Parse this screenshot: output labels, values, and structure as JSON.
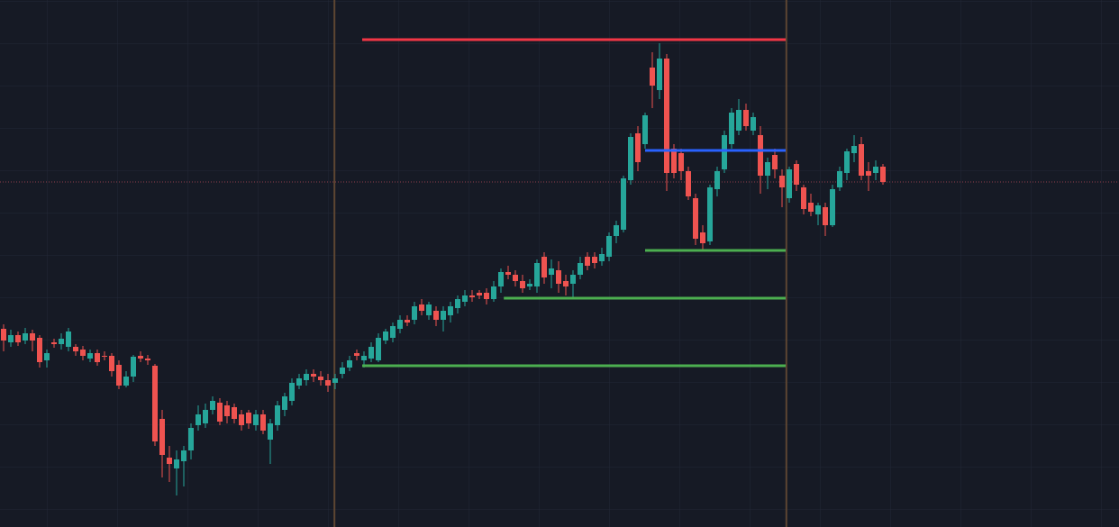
{
  "chart_data": {
    "type": "candlestick",
    "ylim": [
      15,
      600
    ],
    "up_color": "#26a69a",
    "down_color": "#ef5350",
    "open": [
      235,
      220,
      228,
      222,
      230,
      225,
      200,
      220,
      218,
      215,
      215,
      212,
      202,
      208,
      205,
      205,
      195,
      172,
      182,
      205,
      202,
      194,
      135,
      92,
      80,
      88,
      100,
      128,
      130,
      145,
      153,
      150,
      148,
      140,
      142,
      128,
      140,
      112,
      128,
      145,
      155,
      172,
      178,
      185,
      182,
      178,
      175,
      185,
      192,
      208,
      200,
      202,
      200,
      222,
      225,
      235,
      245,
      245,
      262,
      250,
      255,
      245,
      250,
      258,
      265,
      272,
      275,
      275,
      268,
      282,
      298,
      295,
      288,
      282,
      282,
      315,
      295,
      300,
      288,
      285,
      295,
      315,
      315,
      310,
      315,
      338,
      345,
      400,
      452,
      440,
      525,
      500,
      535,
      435,
      430,
      410,
      380,
      342,
      332,
      390,
      412,
      440,
      455,
      478,
      455,
      450,
      405,
      428,
      405,
      380,
      418,
      392,
      375,
      362,
      370,
      350,
      392,
      408,
      430,
      440,
      410,
      408,
      415
    ],
    "high": [
      240,
      234,
      232,
      236,
      234,
      228,
      212,
      224,
      230,
      236,
      218,
      216,
      212,
      212,
      210,
      208,
      200,
      188,
      206,
      210,
      206,
      196,
      145,
      105,
      100,
      105,
      130,
      150,
      152,
      160,
      158,
      155,
      152,
      145,
      145,
      145,
      145,
      135,
      155,
      164,
      180,
      185,
      190,
      190,
      188,
      185,
      185,
      198,
      205,
      212,
      210,
      220,
      230,
      235,
      242,
      250,
      250,
      265,
      268,
      265,
      260,
      260,
      265,
      272,
      278,
      278,
      278,
      280,
      288,
      302,
      305,
      300,
      295,
      290,
      312,
      320,
      312,
      310,
      295,
      300,
      315,
      320,
      320,
      325,
      342,
      355,
      405,
      452,
      460,
      475,
      542,
      552,
      540,
      440,
      435,
      415,
      385,
      350,
      395,
      415,
      455,
      480,
      490,
      485,
      475,
      460,
      425,
      435,
      412,
      415,
      422,
      395,
      385,
      375,
      375,
      395,
      415,
      435,
      450,
      448,
      420,
      422,
      418
    ],
    "low": [
      210,
      215,
      216,
      218,
      210,
      192,
      192,
      214,
      212,
      210,
      205,
      200,
      198,
      194,
      200,
      182,
      168,
      170,
      176,
      198,
      195,
      105,
      70,
      65,
      50,
      60,
      90,
      122,
      125,
      140,
      128,
      130,
      130,
      122,
      124,
      122,
      118,
      85,
      122,
      138,
      150,
      168,
      172,
      176,
      172,
      165,
      168,
      180,
      188,
      200,
      192,
      198,
      198,
      218,
      220,
      230,
      238,
      240,
      250,
      245,
      238,
      232,
      242,
      252,
      260,
      265,
      268,
      262,
      265,
      275,
      290,
      282,
      275,
      278,
      275,
      285,
      280,
      275,
      272,
      270,
      290,
      300,
      302,
      305,
      310,
      330,
      342,
      395,
      410,
      435,
      480,
      490,
      388,
      402,
      400,
      378,
      328,
      322,
      328,
      382,
      408,
      435,
      450,
      455,
      450,
      385,
      390,
      402,
      370,
      375,
      388,
      362,
      360,
      350,
      338,
      348,
      388,
      400,
      420,
      400,
      388,
      400,
      395
    ],
    "close": [
      222,
      228,
      220,
      230,
      222,
      198,
      208,
      218,
      224,
      232,
      210,
      205,
      208,
      198,
      204,
      188,
      172,
      182,
      204,
      202,
      200,
      110,
      95,
      85,
      90,
      100,
      125,
      140,
      145,
      155,
      132,
      138,
      135,
      128,
      130,
      140,
      122,
      130,
      150,
      160,
      175,
      180,
      185,
      182,
      178,
      172,
      180,
      192,
      200,
      205,
      205,
      215,
      225,
      232,
      238,
      245,
      242,
      260,
      255,
      262,
      245,
      255,
      260,
      268,
      272,
      270,
      272,
      268,
      282,
      298,
      295,
      288,
      280,
      285,
      308,
      292,
      302,
      285,
      282,
      295,
      308,
      305,
      308,
      318,
      338,
      350,
      402,
      448,
      420,
      472,
      505,
      535,
      408,
      408,
      410,
      382,
      335,
      330,
      392,
      410,
      450,
      475,
      478,
      460,
      470,
      405,
      420,
      412,
      392,
      412,
      395,
      368,
      365,
      372,
      350,
      390,
      410,
      432,
      438,
      405,
      405,
      415,
      398
    ],
    "levels": [
      {
        "value": 556,
        "from": 49.75,
        "to": 108.5,
        "color": "#f23645"
      },
      {
        "value": 433,
        "from": 89,
        "to": 108.5,
        "color": "#2962ff"
      },
      {
        "value": 322,
        "from": 89,
        "to": 108.5,
        "color": "#4caf50"
      },
      {
        "value": 269,
        "from": 69.4,
        "to": 108.5,
        "color": "#4caf50"
      },
      {
        "value": 194,
        "from": 49.75,
        "to": 108.5,
        "color": "#4caf50"
      }
    ],
    "vlines": [
      45.9,
      108.6
    ],
    "vline_color": "#5d4632"
  }
}
